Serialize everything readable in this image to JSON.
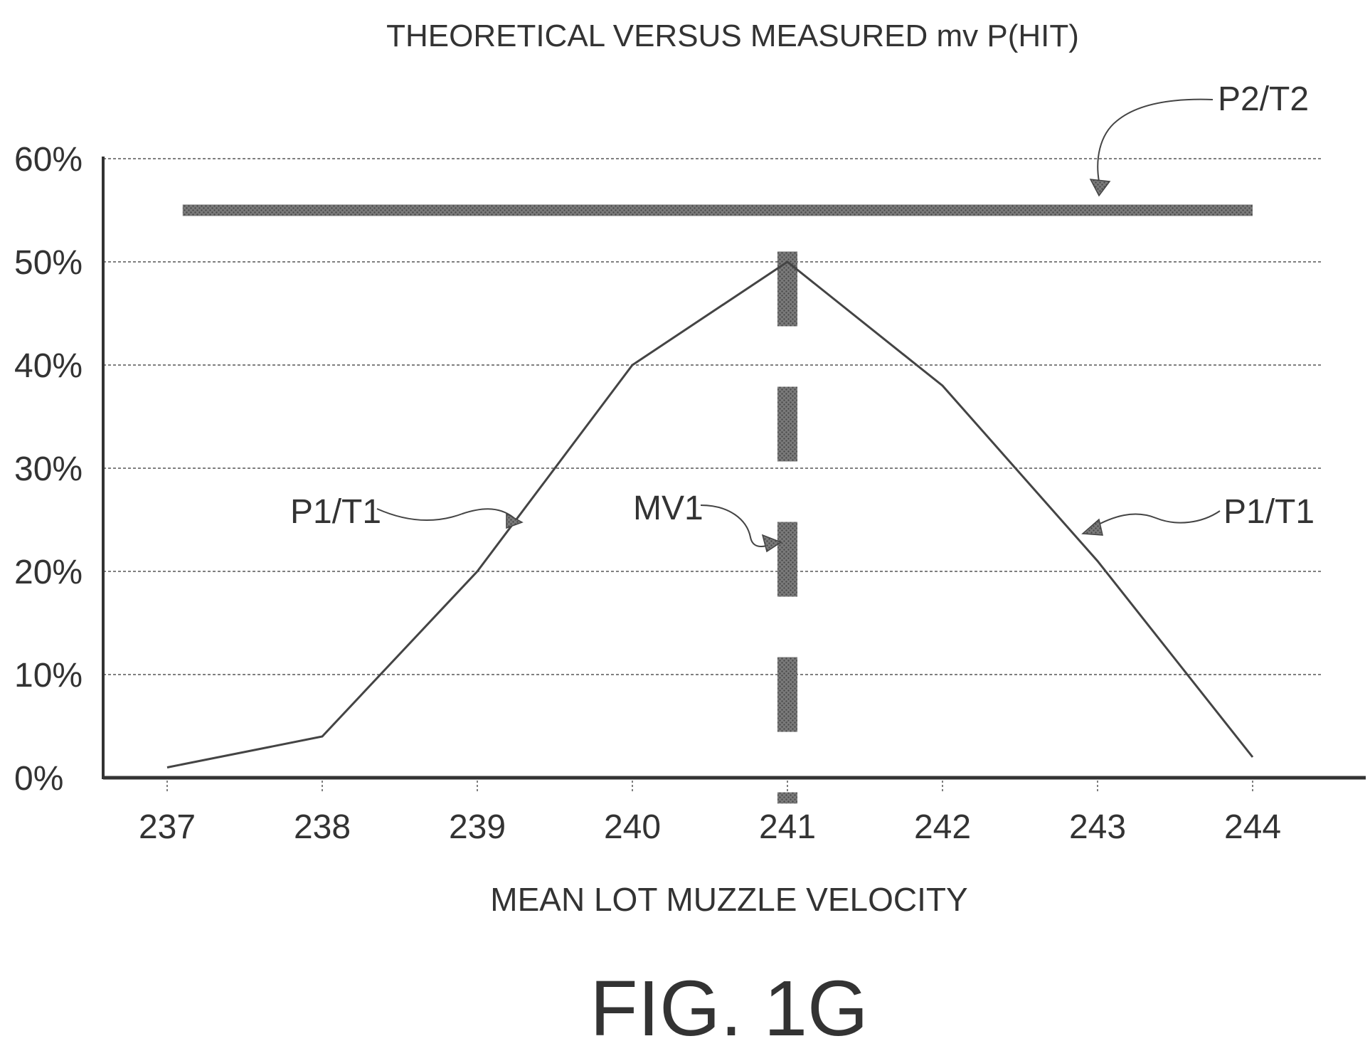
{
  "chart_data": {
    "type": "line",
    "title": "THEORETICAL VERSUS MEASURED mv P(HIT)",
    "xlabel": "MEAN LOT MUZZLE VELOCITY",
    "ylabel": "",
    "x_ticks": [
      "237",
      "238",
      "239",
      "240",
      "241",
      "242",
      "243",
      "244"
    ],
    "y_ticks": [
      "0%",
      "10%",
      "20%",
      "30%",
      "40%",
      "50%",
      "60%"
    ],
    "xlim": [
      237,
      244.7
    ],
    "ylim": [
      0,
      60
    ],
    "grid": "horizontal dashed",
    "series": [
      {
        "name": "P1/T1",
        "x": [
          237,
          238,
          239,
          240,
          241,
          242,
          243,
          244
        ],
        "y": [
          1,
          4,
          20,
          40,
          50,
          38,
          21,
          2
        ]
      },
      {
        "name": "P2/T2",
        "x": [
          237.1,
          244
        ],
        "y": [
          55,
          55
        ]
      },
      {
        "name": "MV1",
        "x": [
          241,
          241
        ],
        "y": [
          -2.5,
          51
        ]
      }
    ],
    "annotations": [
      {
        "text": "P1/T1",
        "target_series": "P1/T1",
        "side": "left"
      },
      {
        "text": "MV1",
        "target_series": "MV1"
      },
      {
        "text": "P1/T1",
        "target_series": "P1/T1",
        "side": "right"
      },
      {
        "text": "P2/T2",
        "target_series": "P2/T2"
      }
    ],
    "caption": "FIG. 1G"
  },
  "colors": {
    "axis": "#333333",
    "line": "#444444",
    "bars": "#6b6b6b",
    "grid": "#555555"
  }
}
